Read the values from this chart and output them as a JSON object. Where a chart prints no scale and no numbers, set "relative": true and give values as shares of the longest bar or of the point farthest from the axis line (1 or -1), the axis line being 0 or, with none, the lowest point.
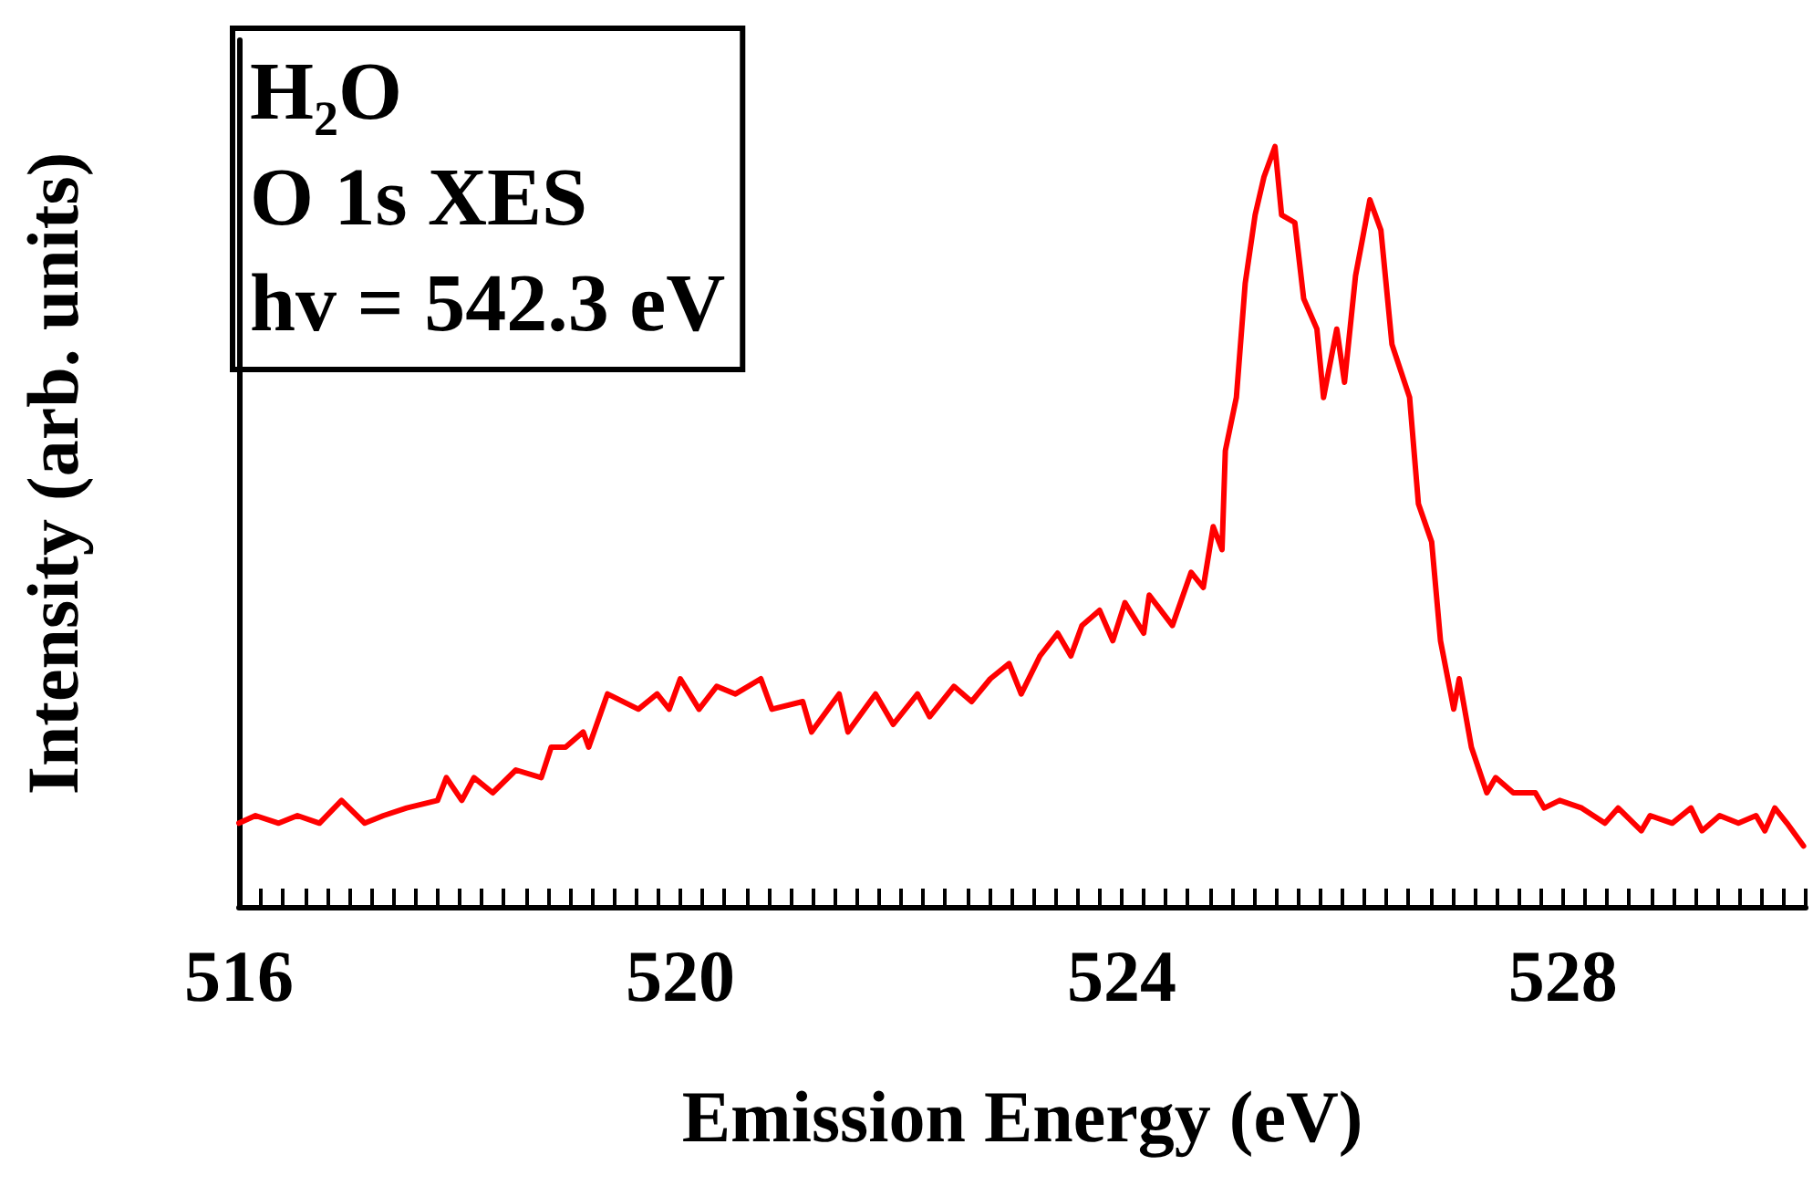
{
  "chart_data": {
    "type": "line",
    "relative": true,
    "xlabel": "Emission Energy (eV)",
    "ylabel": "Intensity (arb. units)",
    "annotations": [
      "H₂O",
      "O 1s XES",
      "hv = 542.3 eV"
    ],
    "xlim": [
      516,
      530.2
    ],
    "xticks": [
      516,
      {
        "value": 516.2,
        "label": null
      },
      {
        "value": 516.4,
        "label": null
      },
      {
        "value": 516.6,
        "label": null
      },
      {
        "value": 516.8,
        "label": null
      },
      {
        "value": 517,
        "label": null
      },
      {
        "value": 517.2,
        "label": null
      },
      {
        "value": 517.4,
        "label": null
      },
      {
        "value": 517.6,
        "label": null
      },
      {
        "value": 517.8,
        "label": null
      },
      {
        "value": 518,
        "label": null
      },
      {
        "value": 518.2,
        "label": null
      },
      {
        "value": 518.4,
        "label": null
      },
      {
        "value": 518.6,
        "label": null
      },
      {
        "value": 518.8,
        "label": null
      },
      {
        "value": 519,
        "label": null
      },
      {
        "value": 519.2,
        "label": null
      },
      {
        "value": 519.4,
        "label": null
      },
      {
        "value": 519.6,
        "label": null
      },
      {
        "value": 519.8,
        "label": null
      },
      520,
      {
        "value": 520.2,
        "label": null
      },
      {
        "value": 520.4,
        "label": null
      },
      {
        "value": 520.6,
        "label": null
      },
      {
        "value": 520.8,
        "label": null
      },
      {
        "value": 521,
        "label": null
      },
      {
        "value": 521.2,
        "label": null
      },
      {
        "value": 521.4,
        "label": null
      },
      {
        "value": 521.6,
        "label": null
      },
      {
        "value": 521.8,
        "label": null
      },
      {
        "value": 522,
        "label": null
      },
      {
        "value": 522.2,
        "label": null
      },
      {
        "value": 522.4,
        "label": null
      },
      {
        "value": 522.6,
        "label": null
      },
      {
        "value": 522.8,
        "label": null
      },
      {
        "value": 523,
        "label": null
      },
      {
        "value": 523.2,
        "label": null
      },
      {
        "value": 523.4,
        "label": null
      },
      {
        "value": 523.6,
        "label": null
      },
      {
        "value": 523.8,
        "label": null
      },
      524,
      {
        "value": 524.2,
        "label": null
      },
      {
        "value": 524.4,
        "label": null
      },
      {
        "value": 524.6,
        "label": null
      },
      {
        "value": 524.8,
        "label": null
      },
      {
        "value": 525,
        "label": null
      },
      {
        "value": 525.2,
        "label": null
      },
      {
        "value": 525.4,
        "label": null
      },
      {
        "value": 525.6,
        "label": null
      },
      {
        "value": 525.8,
        "label": null
      },
      {
        "value": 526,
        "label": null
      },
      {
        "value": 526.2,
        "label": null
      },
      {
        "value": 526.4,
        "label": null
      },
      {
        "value": 526.6,
        "label": null
      },
      {
        "value": 526.8,
        "label": null
      },
      {
        "value": 527,
        "label": null
      },
      {
        "value": 527.2,
        "label": null
      },
      {
        "value": 527.4,
        "label": null
      },
      {
        "value": 527.6,
        "label": null
      },
      {
        "value": 527.8,
        "label": null
      },
      528,
      {
        "value": 528.2,
        "label": null
      },
      {
        "value": 528.4,
        "label": null
      },
      {
        "value": 528.6,
        "label": null
      },
      {
        "value": 528.8,
        "label": null
      },
      {
        "value": 529,
        "label": null
      },
      {
        "value": 529.2,
        "label": null
      },
      {
        "value": 529.4,
        "label": null
      },
      {
        "value": 529.6,
        "label": null
      },
      {
        "value": 529.8,
        "label": null
      },
      {
        "value": 530,
        "label": null
      },
      {
        "value": 530.2,
        "label": null
      }
    ],
    "grid": false,
    "marker": "none",
    "line_style": "solid",
    "series": [
      {
        "color": "#ff0000",
        "x": [
          516.0,
          516.15,
          516.36,
          516.53,
          516.73,
          516.93,
          517.14,
          517.31,
          517.52,
          517.8,
          517.88,
          518.02,
          518.13,
          518.3,
          518.51,
          518.74,
          518.83,
          518.96,
          519.12,
          519.17,
          519.34,
          519.62,
          519.79,
          519.9,
          520.0,
          520.17,
          520.33,
          520.5,
          520.73,
          520.83,
          521.11,
          521.19,
          521.44,
          521.52,
          521.77,
          521.93,
          522.15,
          522.26,
          522.48,
          522.64,
          522.81,
          522.98,
          523.09,
          523.26,
          523.42,
          523.54,
          523.64,
          523.8,
          523.92,
          524.03,
          524.2,
          524.25,
          524.46,
          524.63,
          524.74,
          524.83,
          524.91,
          524.94,
          525.04,
          525.12,
          525.21,
          525.29,
          525.39,
          525.45,
          525.57,
          525.65,
          525.77,
          525.83,
          525.95,
          526.02,
          526.12,
          526.25,
          526.35,
          526.45,
          526.61,
          526.69,
          526.81,
          526.89,
          527.01,
          527.06,
          527.17,
          527.31,
          527.39,
          527.55,
          527.75,
          527.83,
          527.97,
          528.17,
          528.38,
          528.5,
          528.71,
          528.79,
          528.99,
          529.16,
          529.26,
          529.42,
          529.59,
          529.75,
          529.83,
          529.92,
          530.03,
          530.18
        ],
        "values": [
          0.11,
          0.12,
          0.11,
          0.12,
          0.11,
          0.14,
          0.11,
          0.12,
          0.13,
          0.14,
          0.17,
          0.14,
          0.17,
          0.15,
          0.18,
          0.17,
          0.21,
          0.21,
          0.23,
          0.21,
          0.28,
          0.26,
          0.28,
          0.26,
          0.3,
          0.26,
          0.29,
          0.28,
          0.3,
          0.26,
          0.27,
          0.23,
          0.28,
          0.23,
          0.28,
          0.24,
          0.28,
          0.25,
          0.29,
          0.27,
          0.3,
          0.32,
          0.28,
          0.33,
          0.36,
          0.33,
          0.37,
          0.39,
          0.35,
          0.4,
          0.36,
          0.41,
          0.37,
          0.44,
          0.42,
          0.5,
          0.47,
          0.6,
          0.67,
          0.82,
          0.91,
          0.96,
          1.0,
          0.91,
          0.9,
          0.8,
          0.76,
          0.67,
          0.76,
          0.69,
          0.83,
          0.93,
          0.89,
          0.74,
          0.67,
          0.53,
          0.48,
          0.35,
          0.26,
          0.3,
          0.21,
          0.15,
          0.17,
          0.15,
          0.15,
          0.13,
          0.14,
          0.13,
          0.11,
          0.13,
          0.1,
          0.12,
          0.11,
          0.13,
          0.1,
          0.12,
          0.11,
          0.12,
          0.1,
          0.13,
          0.11,
          0.08
        ]
      }
    ]
  }
}
